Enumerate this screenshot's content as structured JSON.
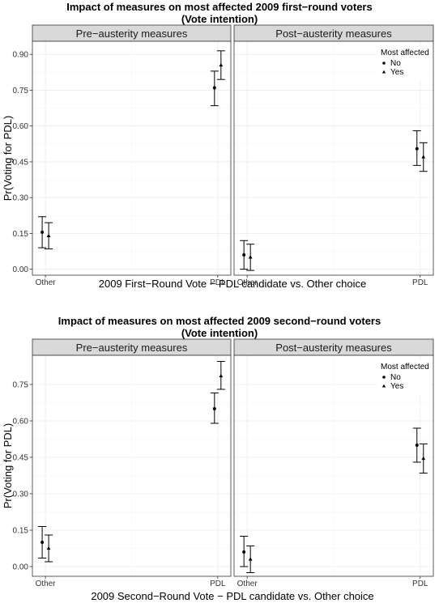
{
  "chart_data": [
    {
      "type": "scatter",
      "title": "Impact of measures on most affected 2009 first−round voters",
      "subtitle": "(Vote intention)",
      "xlabel": "2009 First−Round Vote − PDL candidate vs. Other choice",
      "ylabel": "Pr(Voting for PDL)",
      "categories": [
        "Other",
        "PDL"
      ],
      "ylim": [
        -0.025,
        0.955
      ],
      "yticks": [
        "0.00",
        "0.15",
        "0.30",
        "0.45",
        "0.60",
        "0.75",
        "0.90"
      ],
      "grid": true,
      "legend": {
        "title": "Most affected",
        "position": "top-right",
        "entries": [
          "No",
          "Yes"
        ]
      },
      "panels": [
        {
          "label": "Pre−austerity measures",
          "series": [
            {
              "name": "No",
              "marker": "circle",
              "points": [
                {
                  "x": "Other",
                  "y": 0.155,
                  "lo": 0.09,
                  "hi": 0.22
                },
                {
                  "x": "PDL",
                  "y": 0.76,
                  "lo": 0.685,
                  "hi": 0.83
                }
              ]
            },
            {
              "name": "Yes",
              "marker": "triangle",
              "points": [
                {
                  "x": "Other",
                  "y": 0.14,
                  "lo": 0.085,
                  "hi": 0.195
                },
                {
                  "x": "PDL",
                  "y": 0.855,
                  "lo": 0.795,
                  "hi": 0.915
                }
              ]
            }
          ]
        },
        {
          "label": "Post−austerity measures",
          "series": [
            {
              "name": "No",
              "marker": "circle",
              "points": [
                {
                  "x": "Other",
                  "y": 0.06,
                  "lo": 0.0,
                  "hi": 0.12
                },
                {
                  "x": "PDL",
                  "y": 0.505,
                  "lo": 0.435,
                  "hi": 0.58
                }
              ]
            },
            {
              "name": "Yes",
              "marker": "triangle",
              "points": [
                {
                  "x": "Other",
                  "y": 0.05,
                  "lo": -0.005,
                  "hi": 0.105
                },
                {
                  "x": "PDL",
                  "y": 0.47,
                  "lo": 0.41,
                  "hi": 0.53
                }
              ]
            }
          ]
        }
      ]
    },
    {
      "type": "scatter",
      "title": "Impact of measures on most affected 2009 second−round voters",
      "subtitle": "(Vote intention)",
      "xlabel": "2009 Second−Round Vote − PDL candidate vs. Other choice",
      "ylabel": "Pr(Voting for PDL)",
      "categories": [
        "Other",
        "PDL"
      ],
      "ylim": [
        -0.04,
        0.87
      ],
      "yticks": [
        "0.00",
        "0.15",
        "0.30",
        "0.45",
        "0.60",
        "0.75"
      ],
      "grid": true,
      "legend": {
        "title": "Most affected",
        "position": "top-right",
        "entries": [
          "No",
          "Yes"
        ]
      },
      "panels": [
        {
          "label": "Pre−austerity measures",
          "series": [
            {
              "name": "No",
              "marker": "circle",
              "points": [
                {
                  "x": "Other",
                  "y": 0.1,
                  "lo": 0.035,
                  "hi": 0.165
                },
                {
                  "x": "PDL",
                  "y": 0.65,
                  "lo": 0.59,
                  "hi": 0.715
                }
              ]
            },
            {
              "name": "Yes",
              "marker": "triangle",
              "points": [
                {
                  "x": "Other",
                  "y": 0.075,
                  "lo": 0.02,
                  "hi": 0.13
                },
                {
                  "x": "PDL",
                  "y": 0.785,
                  "lo": 0.73,
                  "hi": 0.845
                }
              ]
            }
          ]
        },
        {
          "label": "Post−austerity measures",
          "series": [
            {
              "name": "No",
              "marker": "circle",
              "points": [
                {
                  "x": "Other",
                  "y": 0.06,
                  "lo": 0.0,
                  "hi": 0.125
                },
                {
                  "x": "PDL",
                  "y": 0.5,
                  "lo": 0.43,
                  "hi": 0.57
                }
              ]
            },
            {
              "name": "Yes",
              "marker": "triangle",
              "points": [
                {
                  "x": "Other",
                  "y": 0.03,
                  "lo": -0.025,
                  "hi": 0.085
                },
                {
                  "x": "PDL",
                  "y": 0.445,
                  "lo": 0.385,
                  "hi": 0.505
                }
              ]
            }
          ]
        }
      ]
    }
  ]
}
